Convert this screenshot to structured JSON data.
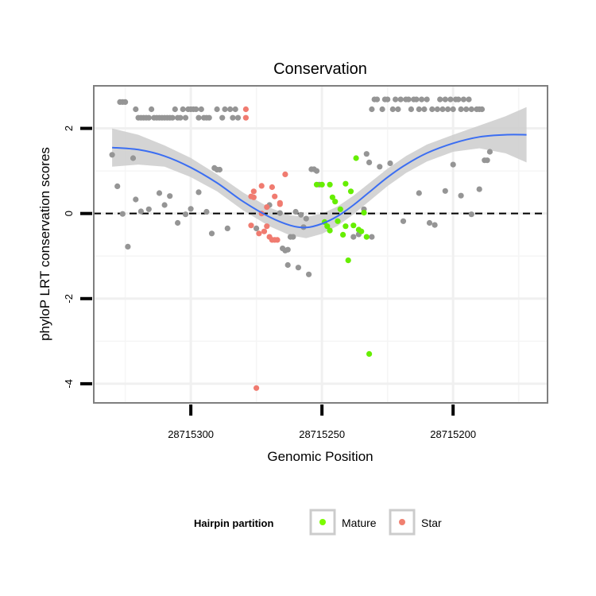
{
  "chart_data": {
    "type": "scatter",
    "title": "Conservation",
    "xlabel": "Genomic Position",
    "ylabel": "phyloP LRT conservation scores",
    "x_reversed": true,
    "xlim": [
      28715337,
      28715164
    ],
    "ylim": [
      -4.45,
      3.0
    ],
    "x_ticks": [
      {
        "value": 28715300,
        "label": "28715300"
      },
      {
        "value": 28715250,
        "label": "28715250"
      },
      {
        "value": 28715200,
        "label": "28715200"
      }
    ],
    "y_ticks": [
      {
        "value": 2,
        "label": "2"
      },
      {
        "value": 0,
        "label": "0"
      },
      {
        "value": -2,
        "label": "-2"
      },
      {
        "value": -4,
        "label": "-4"
      }
    ],
    "reference_line": {
      "y": 0,
      "style": "dashed"
    },
    "legend": {
      "title": "Hairpin partition",
      "position": "bottom",
      "entries": [
        {
          "label": "Mature",
          "color": "#7cfc00"
        },
        {
          "label": "Star",
          "color": "#f08070"
        }
      ]
    },
    "colors": {
      "other": "#959595",
      "Mature": "#66ee00",
      "Star": "#f07b70",
      "smooth": "#3b6ef2",
      "band": "#cccccc"
    },
    "series": [
      {
        "name": "Other",
        "points": [
          [
            28715330,
            1.38
          ],
          [
            28715328,
            0.64
          ],
          [
            28715327,
            2.62
          ],
          [
            28715326,
            2.62
          ],
          [
            28715325,
            2.62
          ],
          [
            28715326,
            -0.01
          ],
          [
            28715324,
            -0.78
          ],
          [
            28715322,
            1.3
          ],
          [
            28715321,
            0.33
          ],
          [
            28715321,
            2.45
          ],
          [
            28715320,
            2.25
          ],
          [
            28715319,
            2.25
          ],
          [
            28715319,
            0.05
          ],
          [
            28715318,
            2.25
          ],
          [
            28715317,
            2.25
          ],
          [
            28715316,
            0.1
          ],
          [
            28715316,
            2.25
          ],
          [
            28715315,
            2.45
          ],
          [
            28715314,
            2.25
          ],
          [
            28715313,
            2.25
          ],
          [
            28715312,
            2.25
          ],
          [
            28715312,
            0.48
          ],
          [
            28715311,
            2.25
          ],
          [
            28715310,
            2.25
          ],
          [
            28715310,
            0.2
          ],
          [
            28715309,
            2.25
          ],
          [
            28715308,
            2.25
          ],
          [
            28715308,
            0.41
          ],
          [
            28715307,
            2.25
          ],
          [
            28715306,
            2.45
          ],
          [
            28715305,
            2.25
          ],
          [
            28715305,
            -0.22
          ],
          [
            28715304,
            2.25
          ],
          [
            28715303,
            2.45
          ],
          [
            28715302,
            2.25
          ],
          [
            28715302,
            -0.02
          ],
          [
            28715301,
            2.45
          ],
          [
            28715300,
            0.11
          ],
          [
            28715300,
            2.45
          ],
          [
            28715299,
            2.45
          ],
          [
            28715298,
            2.45
          ],
          [
            28715297,
            0.5
          ],
          [
            28715297,
            2.25
          ],
          [
            28715296,
            2.45
          ],
          [
            28715295,
            2.25
          ],
          [
            28715294,
            0.04
          ],
          [
            28715294,
            2.25
          ],
          [
            28715293,
            2.25
          ],
          [
            28715292,
            -0.47
          ],
          [
            28715291,
            1.07
          ],
          [
            28715290,
            2.45
          ],
          [
            28715290,
            1.03
          ],
          [
            28715289,
            1.03
          ],
          [
            28715288,
            2.25
          ],
          [
            28715287,
            2.45
          ],
          [
            28715286,
            -0.35
          ],
          [
            28715285,
            2.45
          ],
          [
            28715284,
            2.25
          ],
          [
            28715283,
            2.45
          ],
          [
            28715282,
            2.25
          ],
          [
            28715275,
            -0.35
          ],
          [
            28715270,
            0.2
          ],
          [
            28715266,
            0.01
          ],
          [
            28715265,
            -0.82
          ],
          [
            28715264,
            -0.87
          ],
          [
            28715263,
            -0.85
          ],
          [
            28715263,
            -1.21
          ],
          [
            28715262,
            -0.55
          ],
          [
            28715261,
            -0.55
          ],
          [
            28715260,
            0.04
          ],
          [
            28715259,
            -1.27
          ],
          [
            28715258,
            -0.03
          ],
          [
            28715257,
            -0.32
          ],
          [
            28715256,
            -0.12
          ],
          [
            28715255,
            -1.43
          ],
          [
            28715254,
            1.04
          ],
          [
            28715253,
            1.04
          ],
          [
            28715252,
            1.0
          ],
          [
            28715251,
            0.68
          ],
          [
            28715238,
            -0.55
          ],
          [
            28715236,
            -0.49
          ],
          [
            28715234,
            0.1
          ],
          [
            28715233,
            1.4
          ],
          [
            28715232,
            1.2
          ],
          [
            28715231,
            2.45
          ],
          [
            28715231,
            -0.55
          ],
          [
            28715230,
            2.68
          ],
          [
            28715229,
            2.68
          ],
          [
            28715228,
            1.1
          ],
          [
            28715227,
            2.45
          ],
          [
            28715226,
            2.68
          ],
          [
            28715225,
            2.68
          ],
          [
            28715224,
            1.18
          ],
          [
            28715223,
            2.45
          ],
          [
            28715222,
            2.68
          ],
          [
            28715221,
            2.45
          ],
          [
            28715220,
            2.68
          ],
          [
            28715219,
            -0.18
          ],
          [
            28715218,
            2.68
          ],
          [
            28715217,
            2.68
          ],
          [
            28715216,
            2.45
          ],
          [
            28715215,
            2.68
          ],
          [
            28715214,
            2.68
          ],
          [
            28715213,
            0.48
          ],
          [
            28715213,
            2.45
          ],
          [
            28715212,
            2.68
          ],
          [
            28715211,
            2.45
          ],
          [
            28715210,
            2.68
          ],
          [
            28715209,
            -0.22
          ],
          [
            28715208,
            2.45
          ],
          [
            28715207,
            -0.27
          ],
          [
            28715206,
            2.45
          ],
          [
            28715205,
            2.68
          ],
          [
            28715204,
            2.45
          ],
          [
            28715203,
            0.53
          ],
          [
            28715203,
            2.68
          ],
          [
            28715202,
            2.45
          ],
          [
            28715201,
            2.68
          ],
          [
            28715200,
            1.15
          ],
          [
            28715200,
            2.45
          ],
          [
            28715199,
            2.68
          ],
          [
            28715198,
            2.68
          ],
          [
            28715197,
            0.42
          ],
          [
            28715197,
            2.45
          ],
          [
            28715196,
            2.68
          ],
          [
            28715195,
            2.45
          ],
          [
            28715194,
            2.68
          ],
          [
            28715193,
            -0.02
          ],
          [
            28715193,
            2.45
          ],
          [
            28715191,
            2.45
          ],
          [
            28715190,
            0.57
          ],
          [
            28715190,
            2.45
          ],
          [
            28715189,
            2.45
          ],
          [
            28715188,
            1.25
          ],
          [
            28715187,
            1.25
          ],
          [
            28715186,
            1.45
          ]
        ]
      },
      {
        "name": "Star",
        "points": [
          [
            28715279,
            2.45
          ],
          [
            28715279,
            2.25
          ],
          [
            28715277,
            -0.28
          ],
          [
            28715277,
            0.4
          ],
          [
            28715276,
            0.38
          ],
          [
            28715276,
            0.52
          ],
          [
            28715275,
            -4.1
          ],
          [
            28715274,
            -0.47
          ],
          [
            28715273,
            0.65
          ],
          [
            28715273,
            0.0
          ],
          [
            28715272,
            -0.42
          ],
          [
            28715271,
            0.15
          ],
          [
            28715271,
            -0.3
          ],
          [
            28715270,
            -0.55
          ],
          [
            28715269,
            0.62
          ],
          [
            28715269,
            -0.62
          ],
          [
            28715268,
            -0.62
          ],
          [
            28715268,
            0.4
          ],
          [
            28715267,
            -0.62
          ],
          [
            28715266,
            0.22
          ],
          [
            28715266,
            0.25
          ],
          [
            28715264,
            0.92
          ]
        ]
      },
      {
        "name": "Mature",
        "points": [
          [
            28715252,
            0.68
          ],
          [
            28715250,
            0.68
          ],
          [
            28715249,
            -0.2
          ],
          [
            28715248,
            -0.3
          ],
          [
            28715247,
            0.68
          ],
          [
            28715247,
            -0.4
          ],
          [
            28715246,
            0.38
          ],
          [
            28715245,
            0.28
          ],
          [
            28715244,
            -0.18
          ],
          [
            28715243,
            0.1
          ],
          [
            28715242,
            -0.5
          ],
          [
            28715241,
            0.7
          ],
          [
            28715241,
            -0.3
          ],
          [
            28715240,
            -1.1
          ],
          [
            28715239,
            0.52
          ],
          [
            28715238,
            -0.28
          ],
          [
            28715237,
            1.3
          ],
          [
            28715236,
            -0.38
          ],
          [
            28715235,
            -0.42
          ],
          [
            28715234,
            0.02
          ],
          [
            28715233,
            -0.55
          ],
          [
            28715232,
            -3.3
          ]
        ]
      }
    ],
    "smooth": [
      [
        28715330,
        1.55
      ],
      [
        28715320,
        1.5
      ],
      [
        28715310,
        1.35
      ],
      [
        28715300,
        1.08
      ],
      [
        28715290,
        0.72
      ],
      [
        28715280,
        0.28
      ],
      [
        28715270,
        -0.08
      ],
      [
        28715262,
        -0.28
      ],
      [
        28715256,
        -0.33
      ],
      [
        28715250,
        -0.24
      ],
      [
        28715244,
        -0.06
      ],
      [
        28715238,
        0.2
      ],
      [
        28715232,
        0.5
      ],
      [
        28715225,
        0.85
      ],
      [
        28715218,
        1.15
      ],
      [
        28715210,
        1.42
      ],
      [
        28715200,
        1.65
      ],
      [
        28715190,
        1.8
      ],
      [
        28715180,
        1.85
      ],
      [
        28715172,
        1.85
      ]
    ],
    "smooth_band_halfwidth": [
      [
        28715330,
        0.45
      ],
      [
        28715310,
        0.25
      ],
      [
        28715290,
        0.2
      ],
      [
        28715270,
        0.22
      ],
      [
        28715256,
        0.25
      ],
      [
        28715240,
        0.22
      ],
      [
        28715220,
        0.2
      ],
      [
        28715200,
        0.2
      ],
      [
        28715185,
        0.3
      ],
      [
        28715172,
        0.65
      ]
    ]
  }
}
